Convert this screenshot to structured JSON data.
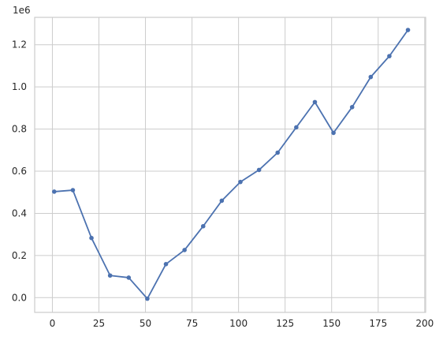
{
  "chart_data": {
    "type": "line",
    "title": "",
    "xlabel": "",
    "ylabel": "",
    "y_offset_label": "1e6",
    "xlim": [
      -9.5,
      200.5
    ],
    "ylim": [
      -70000,
      1330000
    ],
    "xticks": [
      0,
      25,
      50,
      75,
      100,
      125,
      150,
      175,
      200
    ],
    "xtick_labels": [
      "0",
      "25",
      "50",
      "75",
      "100",
      "125",
      "150",
      "175",
      "200"
    ],
    "yticks": [
      0,
      200000,
      400000,
      600000,
      800000,
      1000000,
      1200000
    ],
    "ytick_labels": [
      "0.0",
      "0.2",
      "0.4",
      "0.6",
      "0.8",
      "1.0",
      "1.2"
    ],
    "grid": true,
    "series": [
      {
        "color": "#4c72b0",
        "marker": "circle",
        "x": [
          1,
          11,
          21,
          31,
          41,
          51,
          61,
          71,
          81,
          91,
          101,
          111,
          121,
          131,
          141,
          151,
          161,
          171,
          181,
          191
        ],
        "y": [
          503000,
          510000,
          283000,
          105000,
          95000,
          -5000,
          159000,
          226000,
          339000,
          460000,
          549000,
          606000,
          688000,
          808000,
          928000,
          782000,
          904000,
          1047000,
          1146000,
          1270000
        ]
      }
    ]
  }
}
